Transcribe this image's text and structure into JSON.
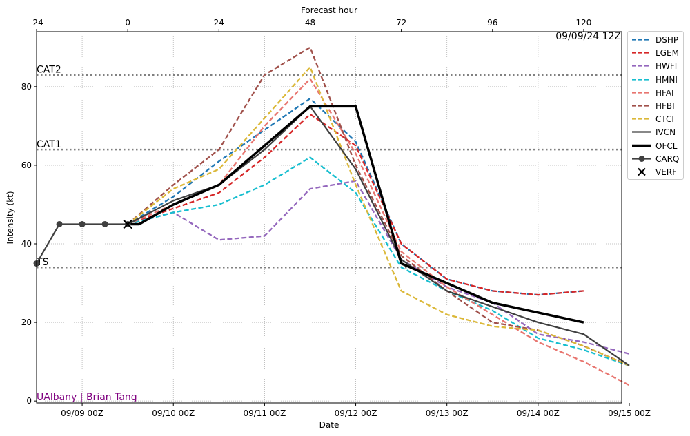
{
  "chart_data": {
    "type": "line",
    "timestamp": "09/09/24 12Z",
    "watermark": "UAlbany | Brian Tang",
    "xlabel": "Date",
    "ylabel": "Intensity (kt)",
    "top_axis_label": "Forecast hour",
    "x_units": "forecast hour",
    "xlim": [
      -24,
      130
    ],
    "ylim": [
      -0.5,
      94
    ],
    "y_ticks": [
      0,
      20,
      40,
      60,
      80
    ],
    "top_ticks": [
      -24,
      0,
      24,
      48,
      72,
      96,
      120
    ],
    "bottom_ticks": [
      {
        "x": -12,
        "label": "09/09 00Z"
      },
      {
        "x": 12,
        "label": "09/10 00Z"
      },
      {
        "x": 36,
        "label": "09/11 00Z"
      },
      {
        "x": 60,
        "label": "09/12 00Z"
      },
      {
        "x": 84,
        "label": "09/13 00Z"
      },
      {
        "x": 108,
        "label": "09/14 00Z"
      },
      {
        "x": 132,
        "label": "09/15 00Z"
      }
    ],
    "thresholds": [
      {
        "label": "CAT2",
        "y": 83
      },
      {
        "label": "CAT1",
        "y": 64
      },
      {
        "label": "TS",
        "y": 34
      }
    ],
    "grid": true,
    "legend_position": "outside-right",
    "series": [
      {
        "name": "DSHP",
        "color": "#1f77b4",
        "style": "dashed",
        "x": [
          0,
          12,
          24,
          36,
          48,
          60,
          72,
          84,
          96,
          108,
          120
        ],
        "y": [
          45,
          52,
          61,
          69,
          77,
          66,
          40,
          31,
          28,
          27,
          28
        ]
      },
      {
        "name": "LGEM",
        "color": "#d62728",
        "style": "dashed",
        "x": [
          0,
          12,
          24,
          36,
          48,
          60,
          72,
          84,
          96,
          108,
          120
        ],
        "y": [
          45,
          49,
          53,
          62,
          73,
          65,
          40,
          31,
          28,
          27,
          28
        ]
      },
      {
        "name": "HWFI",
        "color": "#9467bd",
        "style": "dashed",
        "x": [
          0,
          12,
          24,
          36,
          48,
          60,
          72,
          84,
          96,
          108,
          120,
          132
        ],
        "y": [
          45,
          48,
          41,
          42,
          54,
          56,
          36,
          29,
          25,
          17,
          15,
          12
        ]
      },
      {
        "name": "HMNI",
        "color": "#17becf",
        "style": "dashed",
        "x": [
          0,
          12,
          24,
          36,
          48,
          60,
          72,
          84,
          96,
          108,
          120,
          132
        ],
        "y": [
          45,
          48,
          50,
          55,
          62,
          53,
          34,
          28,
          23,
          16,
          13,
          9
        ]
      },
      {
        "name": "HFAI",
        "color": "#e8756f",
        "style": "dashed",
        "x": [
          0,
          12,
          24,
          36,
          48,
          60,
          72,
          84,
          96,
          108,
          120,
          132
        ],
        "y": [
          45,
          50,
          55,
          70,
          82,
          63,
          38,
          29,
          22,
          15,
          10,
          4
        ]
      },
      {
        "name": "HFBI",
        "color": "#a0504a",
        "style": "dashed",
        "x": [
          0,
          12,
          24,
          36,
          48,
          60,
          72,
          84,
          96,
          108,
          120,
          132
        ],
        "y": [
          45,
          55,
          64,
          83,
          90,
          60,
          37,
          28,
          20,
          18,
          14,
          9
        ]
      },
      {
        "name": "CTCI",
        "color": "#dbb839",
        "style": "dashed",
        "x": [
          0,
          12,
          24,
          36,
          48,
          60,
          72,
          84,
          96,
          108,
          120,
          132
        ],
        "y": [
          45,
          54,
          59,
          72,
          85,
          55,
          28,
          22,
          19,
          18,
          14,
          9
        ]
      },
      {
        "name": "IVCN",
        "color": "#404040",
        "style": "solid",
        "x": [
          0,
          12,
          24,
          36,
          48,
          60,
          72,
          84,
          96,
          108,
          120,
          132
        ],
        "y": [
          45,
          51,
          55,
          64,
          75,
          59,
          36,
          28,
          24,
          20,
          17,
          9
        ]
      },
      {
        "name": "OFCL",
        "color": "#000000",
        "style": "bold",
        "x": [
          0,
          3,
          12,
          24,
          36,
          48,
          60,
          72,
          96,
          120
        ],
        "y": [
          45,
          45,
          50,
          55,
          65,
          75,
          75,
          35,
          25,
          20
        ]
      },
      {
        "name": "CARQ",
        "color": "#404040",
        "style": "markers",
        "x": [
          -24,
          -18,
          -12,
          -6,
          0
        ],
        "y": [
          35,
          45,
          45,
          45,
          45
        ]
      },
      {
        "name": "VERF",
        "color": "#000000",
        "style": "x-marker",
        "x": [
          0
        ],
        "y": [
          45
        ]
      }
    ]
  }
}
